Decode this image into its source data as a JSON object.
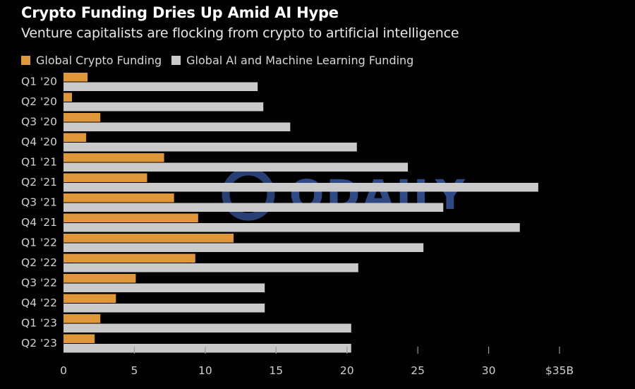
{
  "colors": {
    "background": "#000000",
    "crypto": "#e0973a",
    "ai": "#cacaca",
    "axis_text": "#d0d0d0",
    "watermark": "#2e4a86"
  },
  "chart_data": {
    "type": "bar",
    "orientation": "horizontal",
    "title": "Crypto Funding Dries Up Amid AI Hype",
    "subtitle": "Venture capitalists are flocking from crypto to artificial intelligence",
    "categories": [
      "Q1 '20",
      "Q2 '20",
      "Q3 '20",
      "Q4 '20",
      "Q1 '21",
      "Q2 '21",
      "Q3 '21",
      "Q4 '21",
      "Q1 '22",
      "Q2 '22",
      "Q3 '22",
      "Q4 '22",
      "Q1 '23",
      "Q2 '23"
    ],
    "series": [
      {
        "name": "Global Crypto Funding",
        "color": "#e0973a",
        "values": [
          1.7,
          0.6,
          2.6,
          1.6,
          7.1,
          5.9,
          7.8,
          9.5,
          12.0,
          9.3,
          5.1,
          3.7,
          2.6,
          2.2
        ]
      },
      {
        "name": "Global AI and Machine Learning Funding",
        "color": "#cacaca",
        "values": [
          13.7,
          14.1,
          16.0,
          20.7,
          24.3,
          33.5,
          26.8,
          32.2,
          25.4,
          20.8,
          14.2,
          14.2,
          20.3,
          20.3
        ]
      }
    ],
    "xlim": [
      0,
      35
    ],
    "xticks": [
      0,
      5,
      10,
      15,
      20,
      25,
      30,
      35
    ],
    "xtick_labels": [
      "0",
      "5",
      "10",
      "15",
      "20",
      "25",
      "30",
      "$35B"
    ],
    "legend_position": "top-left",
    "grid": false
  },
  "watermark": {
    "text": "ODAILY"
  }
}
